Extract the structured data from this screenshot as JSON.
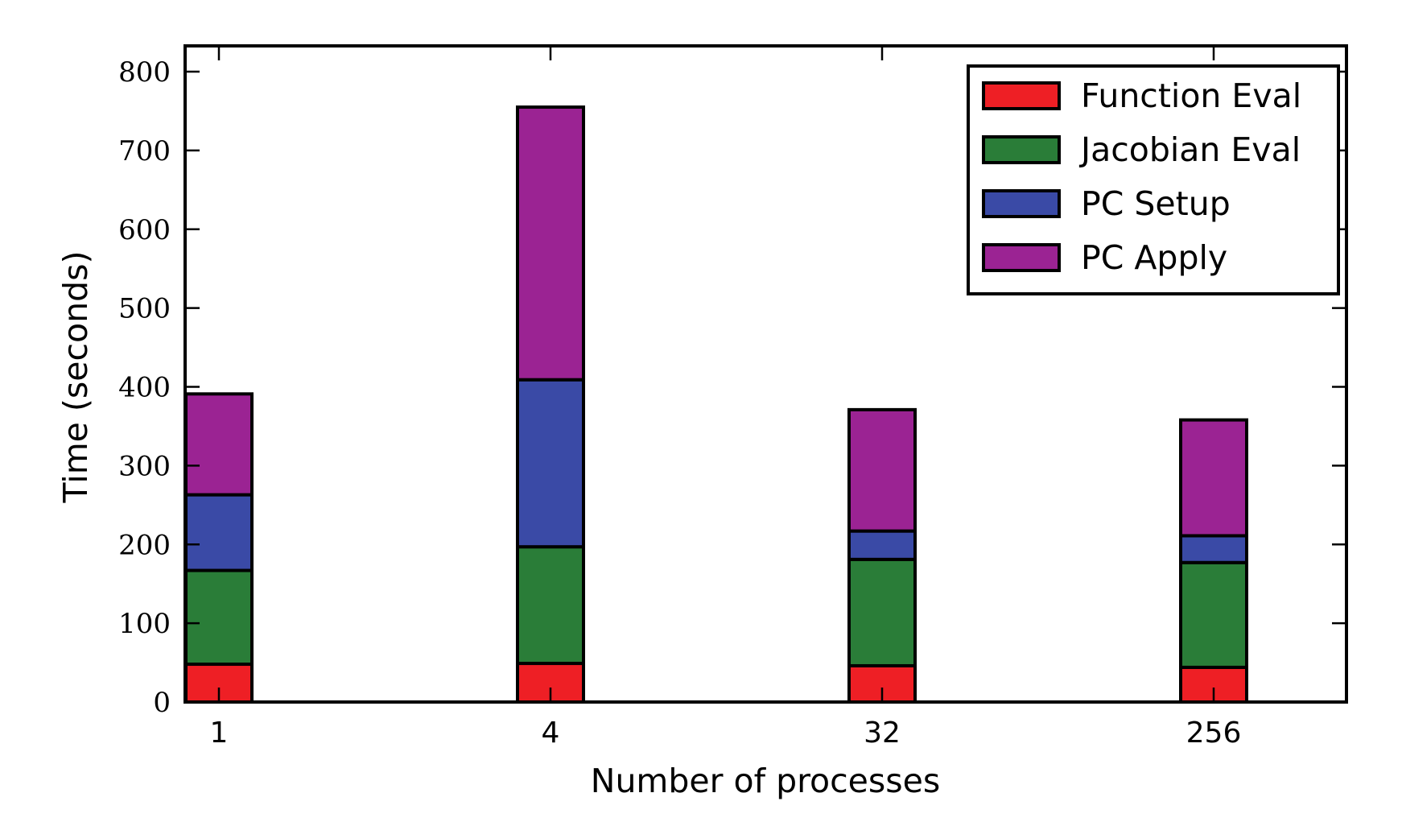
{
  "chart_data": {
    "type": "bar",
    "stacked": true,
    "categories": [
      "1",
      "4",
      "32",
      "256"
    ],
    "series": [
      {
        "name": "Function Eval",
        "color": "#ee1f25",
        "values": [
          48,
          49,
          46,
          44
        ]
      },
      {
        "name": "Jacobian Eval",
        "color": "#2a7d38",
        "values": [
          119,
          148,
          135,
          133
        ]
      },
      {
        "name": "PC Setup",
        "color": "#3a4aa6",
        "values": [
          96,
          212,
          36,
          34
        ]
      },
      {
        "name": "PC Apply",
        "color": "#9b2393",
        "values": [
          128,
          346,
          154,
          147
        ]
      }
    ],
    "xlabel": "Number of processes",
    "ylabel": "Time (seconds)",
    "ylim": [
      0,
      800
    ],
    "yticks": [
      0,
      100,
      200,
      300,
      400,
      500,
      600,
      700,
      800
    ],
    "grid": false,
    "legend_position": "top-right"
  }
}
